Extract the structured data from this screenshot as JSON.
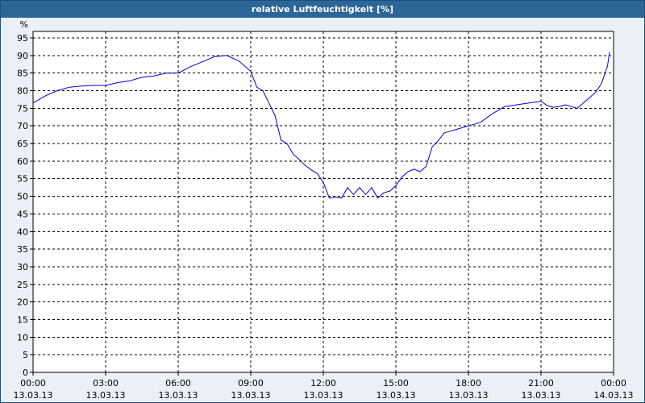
{
  "window": {
    "title": "relative Luftfeuchtigkeit [%]"
  },
  "colors": {
    "titlebar": "#2c6698",
    "plot_bg": "#ffffff",
    "line": "#0000cc",
    "grid": "#000000",
    "page_bg": "#eaf0f6"
  },
  "chart_data": {
    "type": "line",
    "title": "relative Luftfeuchtigkeit [%]",
    "xlabel": "",
    "ylabel": "%",
    "ylim": [
      0,
      95
    ],
    "y_ticks": [
      0,
      5,
      10,
      15,
      20,
      25,
      30,
      35,
      40,
      45,
      50,
      55,
      60,
      65,
      70,
      75,
      80,
      85,
      90,
      95
    ],
    "xlim": [
      "13.03.13 00:00",
      "14.03.13 00:00"
    ],
    "x_ticks": [
      {
        "time": "00:00",
        "date": "13.03.13"
      },
      {
        "time": "03:00",
        "date": "13.03.13"
      },
      {
        "time": "06:00",
        "date": "13.03.13"
      },
      {
        "time": "09:00",
        "date": "13.03.13"
      },
      {
        "time": "12:00",
        "date": "13.03.13"
      },
      {
        "time": "15:00",
        "date": "13.03.13"
      },
      {
        "time": "18:00",
        "date": "13.03.13"
      },
      {
        "time": "21:00",
        "date": "13.03.13"
      },
      {
        "time": "00:00",
        "date": "14.03.13"
      }
    ],
    "grid": true,
    "grid_style": "dashed",
    "legend": "none",
    "series": [
      {
        "x": [
          "13.03.13 00:00",
          "13.03.13 00:30",
          "13.03.13 01:00",
          "13.03.13 01:30",
          "13.03.13 02:00",
          "13.03.13 02:30",
          "13.03.13 03:00",
          "13.03.13 03:30",
          "13.03.13 04:00",
          "13.03.13 04:30",
          "13.03.13 05:00",
          "13.03.13 05:30",
          "13.03.13 06:00",
          "13.03.13 06:30",
          "13.03.13 07:00",
          "13.03.13 07:30",
          "13.03.13 08:00",
          "13.03.13 08:30",
          "13.03.13 09:00",
          "13.03.13 09:15",
          "13.03.13 09:30",
          "13.03.13 09:45",
          "13.03.13 10:00",
          "13.03.13 10:15",
          "13.03.13 10:30",
          "13.03.13 10:45",
          "13.03.13 11:00",
          "13.03.13 11:15",
          "13.03.13 11:30",
          "13.03.13 11:45",
          "13.03.13 12:00",
          "13.03.13 12:15",
          "13.03.13 12:30",
          "13.03.13 12:45",
          "13.03.13 13:00",
          "13.03.13 13:15",
          "13.03.13 13:30",
          "13.03.13 13:45",
          "13.03.13 14:00",
          "13.03.13 14:15",
          "13.03.13 14:30",
          "13.03.13 14:45",
          "13.03.13 15:00",
          "13.03.13 15:15",
          "13.03.13 15:30",
          "13.03.13 15:45",
          "13.03.13 16:00",
          "13.03.13 16:15",
          "13.03.13 16:30",
          "13.03.13 16:45",
          "13.03.13 17:00",
          "13.03.13 17:15",
          "13.03.13 17:30",
          "13.03.13 17:45",
          "13.03.13 18:00",
          "13.03.13 18:30",
          "13.03.13 19:00",
          "13.03.13 19:30",
          "13.03.13 20:00",
          "13.03.13 20:30",
          "13.03.13 21:00",
          "13.03.13 21:15",
          "13.03.13 21:30",
          "13.03.13 21:45",
          "13.03.13 22:00",
          "13.03.13 22:15",
          "13.03.13 22:30",
          "13.03.13 22:45",
          "13.03.13 23:00",
          "13.03.13 23:15",
          "13.03.13 23:30",
          "13.03.13 23:45",
          "13.03.13 23:50"
        ],
        "values": [
          76.5,
          78.5,
          80,
          81,
          81.3,
          81.5,
          81.5,
          82.3,
          82.8,
          83.8,
          84.2,
          85,
          85,
          86.8,
          88.2,
          89.7,
          90,
          88.5,
          85.5,
          81,
          80,
          76.5,
          73,
          66,
          65,
          62,
          60.5,
          58.8,
          57.5,
          56.5,
          54,
          49.5,
          49.8,
          49.5,
          52.5,
          50.5,
          52.5,
          50.5,
          52.5,
          49.5,
          51,
          51.5,
          53,
          55.5,
          57,
          57.7,
          57,
          58.5,
          64,
          65.8,
          68,
          68.5,
          69,
          69.5,
          70,
          71,
          73.5,
          75.5,
          76,
          76.5,
          77,
          75.8,
          75.3,
          75.5,
          76,
          75.5,
          75,
          76.5,
          78,
          79.5,
          82,
          87,
          91
        ]
      }
    ]
  }
}
